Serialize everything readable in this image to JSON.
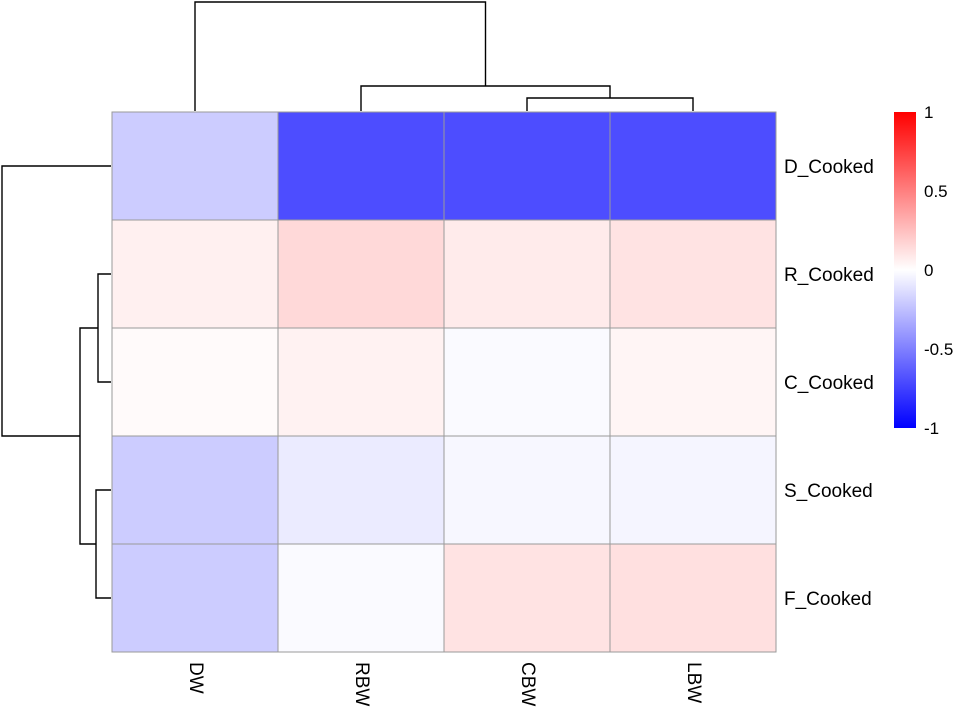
{
  "chart_data": {
    "type": "heatmap",
    "title": "",
    "columns": [
      "DW",
      "RBW",
      "CBW",
      "LBW"
    ],
    "rows": [
      "D_Cooked",
      "R_Cooked",
      "C_Cooked",
      "S_Cooked",
      "F_Cooked"
    ],
    "values": [
      [
        -0.2,
        -0.7,
        -0.7,
        -0.7
      ],
      [
        0.06,
        0.15,
        0.08,
        0.11
      ],
      [
        0.02,
        0.05,
        -0.02,
        0.04
      ],
      [
        -0.2,
        -0.08,
        -0.03,
        -0.04
      ],
      [
        -0.2,
        -0.02,
        0.11,
        0.12
      ]
    ],
    "scale": {
      "min": -1,
      "max": 1,
      "colors": [
        "#0000ff",
        "#ffffff",
        "#ff0000"
      ],
      "ticks": [
        1,
        0.5,
        0,
        -0.5,
        -1
      ],
      "tick_labels": [
        "1",
        "0.5",
        "0",
        "-0.5",
        "-1"
      ]
    },
    "row_dendrogram": true,
    "column_dendrogram": true,
    "legend": "right",
    "grid": true
  }
}
